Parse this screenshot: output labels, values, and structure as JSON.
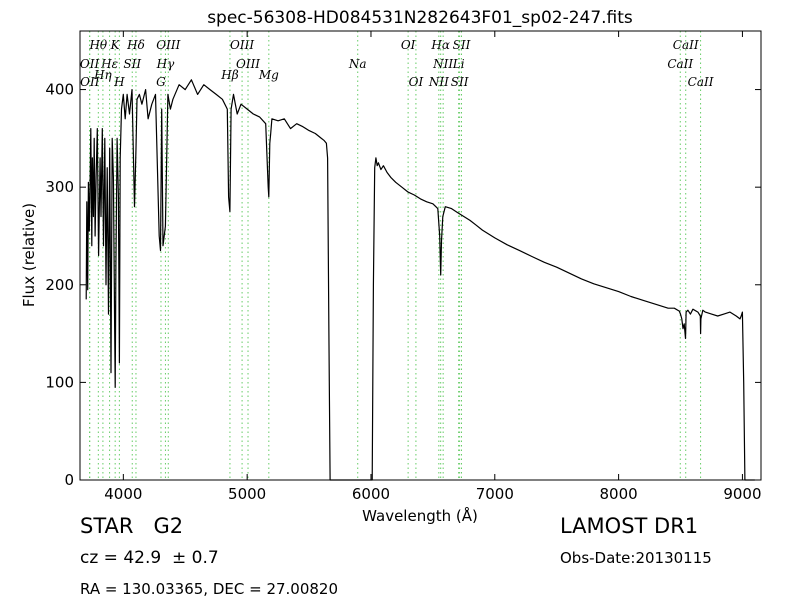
{
  "chart_data": {
    "type": "line",
    "title": "spec-56308-HD084531N282643F01_sp02-247.fits",
    "xlabel": "Wavelength (Å)",
    "ylabel": "Flux (relative)",
    "xlim": [
      3650,
      9150
    ],
    "ylim": [
      0,
      460
    ],
    "xticks": [
      4000,
      5000,
      6000,
      7000,
      8000,
      9000
    ],
    "yticks": [
      0,
      100,
      200,
      300,
      400
    ],
    "grid": false,
    "series": [
      {
        "color": "#000000",
        "x": [
          3700,
          3705,
          3712,
          3718,
          3725,
          3730,
          3737,
          3745,
          3750,
          3758,
          3765,
          3772,
          3780,
          3790,
          3800,
          3812,
          3820,
          3830,
          3840,
          3850,
          3860,
          3870,
          3880,
          3890,
          3900,
          3910,
          3920,
          3930,
          3934,
          3940,
          3950,
          3960,
          3968,
          3975,
          3985,
          4000,
          4015,
          4030,
          4050,
          4070,
          4090,
          4102,
          4110,
          4130,
          4150,
          4180,
          4200,
          4230,
          4260,
          4290,
          4300,
          4310,
          4320,
          4340,
          4360,
          4380,
          4400,
          4450,
          4500,
          4550,
          4600,
          4650,
          4700,
          4750,
          4800,
          4840,
          4850,
          4861,
          4870,
          4890,
          4920,
          4950,
          5000,
          5050,
          5100,
          5150,
          5170,
          5175,
          5183,
          5190,
          5200,
          5250,
          5300,
          5350,
          5400,
          5450,
          5500,
          5550,
          5600,
          5620,
          5640,
          5650,
          5660,
          5670,
          5680,
          5700,
          5800,
          5900,
          6000,
          6010,
          6020,
          6030,
          6040,
          6050,
          6060,
          6080,
          6100,
          6130,
          6160,
          6200,
          6250,
          6300,
          6350,
          6400,
          6450,
          6500,
          6540,
          6555,
          6563,
          6570,
          6580,
          6600,
          6650,
          6700,
          6750,
          6800,
          6850,
          6900,
          6950,
          7000,
          7100,
          7200,
          7300,
          7400,
          7500,
          7600,
          7700,
          7800,
          7900,
          8000,
          8100,
          8200,
          8300,
          8400,
          8450,
          8490,
          8500,
          8510,
          8520,
          8530,
          8540,
          8542,
          8545,
          8560,
          8580,
          8600,
          8640,
          8660,
          8662,
          8665,
          8680,
          8700,
          8750,
          8800,
          8850,
          8900,
          8950,
          8980,
          8990,
          9000,
          9010,
          9020,
          9050,
          9100
        ],
        "y": [
          185,
          285,
          195,
          305,
          255,
          290,
          360,
          240,
          330,
          270,
          350,
          250,
          310,
          360,
          230,
          330,
          270,
          360,
          240,
          350,
          200,
          320,
          170,
          340,
          110,
          350,
          310,
          150,
          95,
          220,
          350,
          290,
          120,
          330,
          380,
          395,
          370,
          395,
          375,
          400,
          280,
          340,
          390,
          395,
          385,
          400,
          370,
          385,
          395,
          250,
          235,
          380,
          240,
          260,
          395,
          380,
          390,
          405,
          400,
          410,
          395,
          405,
          400,
          395,
          390,
          380,
          290,
          275,
          380,
          395,
          375,
          385,
          380,
          375,
          372,
          365,
          300,
          290,
          345,
          355,
          370,
          368,
          370,
          360,
          365,
          362,
          358,
          355,
          350,
          348,
          345,
          330,
          150,
          0,
          0,
          0,
          0,
          0,
          0,
          0,
          200,
          320,
          330,
          322,
          325,
          318,
          322,
          315,
          310,
          305,
          300,
          295,
          292,
          288,
          285,
          283,
          278,
          250,
          210,
          245,
          270,
          280,
          278,
          274,
          270,
          266,
          261,
          256,
          252,
          248,
          241,
          235,
          229,
          223,
          218,
          212,
          206,
          201,
          197,
          193,
          188,
          184,
          180,
          176,
          176,
          173,
          170,
          165,
          155,
          160,
          145,
          152,
          172,
          174,
          170,
          175,
          172,
          168,
          150,
          165,
          174,
          172,
          170,
          168,
          170,
          172,
          168,
          165,
          168,
          172,
          100,
          0,
          0,
          0
        ]
      }
    ],
    "line_markers": [
      {
        "label": "Hθ",
        "x": 3798,
        "row": 0
      },
      {
        "label": "K",
        "x": 3934,
        "row": 0
      },
      {
        "label": "Hδ",
        "x": 4102,
        "row": 0
      },
      {
        "label": "OIII",
        "x": 4363,
        "row": 0
      },
      {
        "label": "OIII",
        "x": 4959,
        "row": 0
      },
      {
        "label": "OI",
        "x": 6300,
        "row": 0
      },
      {
        "label": "Hα",
        "x": 6563,
        "row": 0
      },
      {
        "label": "SII",
        "x": 6731,
        "row": 0
      },
      {
        "label": "CaII",
        "x": 8542,
        "row": 0
      },
      {
        "label": "OII",
        "x": 3727,
        "row": 1
      },
      {
        "label": "Hε",
        "x": 3889,
        "row": 1
      },
      {
        "label": "SII",
        "x": 4072,
        "row": 1
      },
      {
        "label": "Hγ",
        "x": 4340,
        "row": 1
      },
      {
        "label": "OIII",
        "x": 5007,
        "row": 1
      },
      {
        "label": "Na",
        "x": 5893,
        "row": 1
      },
      {
        "label": "NII",
        "x": 6583,
        "row": 1
      },
      {
        "label": "Li",
        "x": 6708,
        "row": 1
      },
      {
        "label": "CaII",
        "x": 8498,
        "row": 1
      },
      {
        "label": "Hη",
        "x": 3835,
        "row": 2
      },
      {
        "label": "OII",
        "x": 3729,
        "row": 3
      },
      {
        "label": "H",
        "x": 3968,
        "row": 3
      },
      {
        "label": "G",
        "x": 4304,
        "row": 3
      },
      {
        "label": "Hβ",
        "x": 4861,
        "row": 2
      },
      {
        "label": "Mg",
        "x": 5175,
        "row": 2
      },
      {
        "label": "OI",
        "x": 6363,
        "row": 3
      },
      {
        "label": "NII",
        "x": 6548,
        "row": 3
      },
      {
        "label": "SII",
        "x": 6716,
        "row": 3
      },
      {
        "label": "CaII",
        "x": 8662,
        "row": 3
      }
    ],
    "marker_line_color": "#66cc66"
  },
  "info": {
    "object_class": "STAR   G2",
    "survey": "LAMOST DR1",
    "cz": "cz = 42.9  ± 0.7",
    "obs_date": "Obs-Date:20130115",
    "radec": "RA = 130.03365, DEC = 27.00820"
  }
}
